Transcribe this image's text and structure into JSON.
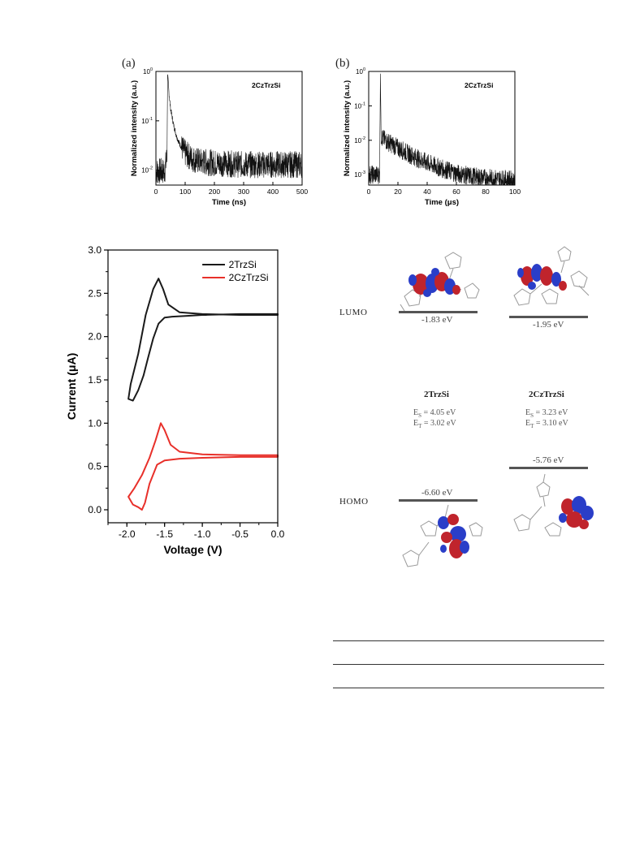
{
  "panel_a": {
    "label": "(a)",
    "chart_data": {
      "type": "line",
      "title": "2CzTrzSi",
      "xlabel": "Time (ns)",
      "ylabel": "Normalized intensity (a.u.)",
      "xlim": [
        0,
        500
      ],
      "ylim_log": [
        0.005,
        1
      ],
      "x_ticks": [
        "0",
        "100",
        "200",
        "300",
        "400",
        "500"
      ],
      "y_ticks": [
        {
          "v": 1,
          "base": "10",
          "exp": "0"
        },
        {
          "v": 0.1,
          "base": "10",
          "exp": "-1"
        },
        {
          "v": 0.01,
          "base": "10",
          "exp": "-2"
        }
      ],
      "series": [
        {
          "x": [
            0,
            30,
            38,
            40,
            42,
            45,
            50,
            60,
            70,
            80,
            100,
            125,
            150,
            200,
            300,
            400,
            500
          ],
          "y": [
            0.0095,
            0.0095,
            0.02,
            0.9,
            0.6,
            0.35,
            0.18,
            0.085,
            0.05,
            0.035,
            0.022,
            0.017,
            0.015,
            0.014,
            0.013,
            0.013,
            0.013
          ]
        }
      ]
    }
  },
  "panel_b": {
    "label": "(b)",
    "chart_data": {
      "type": "line",
      "title": "2CzTrzSi",
      "xlabel": "Time (μs)",
      "ylabel": "Normalized intensity (a.u.)",
      "xlim": [
        0,
        100
      ],
      "ylim_log": [
        0.0005,
        1
      ],
      "x_ticks": [
        "0",
        "20",
        "40",
        "60",
        "80",
        "100"
      ],
      "y_ticks": [
        {
          "v": 1,
          "base": "10",
          "exp": "0"
        },
        {
          "v": 0.1,
          "base": "10",
          "exp": "-1"
        },
        {
          "v": 0.01,
          "base": "10",
          "exp": "-2"
        },
        {
          "v": 0.001,
          "base": "10",
          "exp": "-3"
        }
      ],
      "series": [
        {
          "x": [
            0,
            7.5,
            8,
            8.5,
            10,
            15,
            20,
            30,
            40,
            50,
            60,
            70,
            80,
            90,
            100
          ],
          "y": [
            0.001,
            0.001,
            0.9,
            0.013,
            0.011,
            0.008,
            0.006,
            0.0035,
            0.0022,
            0.0015,
            0.0011,
            0.0009,
            0.0008,
            0.00075,
            0.0007
          ]
        }
      ]
    }
  },
  "cv_chart": {
    "chart_data": {
      "type": "line",
      "xlabel": "Voltage (V)",
      "ylabel": "Current (μA)",
      "xlim": [
        -2.25,
        0.0
      ],
      "ylim": [
        -0.15,
        3.0
      ],
      "x_ticks": [
        "-2.0",
        "-1.5",
        "-1.0",
        "-0.5",
        "0.0"
      ],
      "y_ticks": [
        "0.0",
        "0.5",
        "1.0",
        "1.5",
        "2.0",
        "2.5",
        "3.0"
      ],
      "legend_position": "top-right",
      "series": [
        {
          "name": "2TrzSi",
          "color": "#1a1a1a",
          "x": [
            0.0,
            -0.5,
            -1.0,
            -1.3,
            -1.45,
            -1.52,
            -1.58,
            -1.65,
            -1.75,
            -1.85,
            -1.95,
            -1.98,
            -1.92,
            -1.85,
            -1.78,
            -1.72,
            -1.65,
            -1.58,
            -1.5,
            -1.4,
            -1.2,
            -1.0,
            -0.5,
            0.0
          ],
          "y": [
            2.25,
            2.25,
            2.26,
            2.28,
            2.37,
            2.55,
            2.67,
            2.55,
            2.25,
            1.8,
            1.45,
            1.28,
            1.26,
            1.38,
            1.55,
            1.75,
            1.98,
            2.15,
            2.22,
            2.23,
            2.24,
            2.25,
            2.26,
            2.26
          ],
          "closed": true
        },
        {
          "name": "2CzTrzSi",
          "color": "#e8302a",
          "x": [
            0.0,
            -0.5,
            -1.0,
            -1.3,
            -1.42,
            -1.5,
            -1.55,
            -1.62,
            -1.7,
            -1.8,
            -1.9,
            -1.98,
            -1.92,
            -1.85,
            -1.8,
            -1.76,
            -1.7,
            -1.6,
            -1.5,
            -1.3,
            -1.0,
            -0.5,
            0.0
          ],
          "y": [
            0.63,
            0.63,
            0.64,
            0.67,
            0.75,
            0.92,
            1.0,
            0.8,
            0.6,
            0.4,
            0.25,
            0.15,
            0.06,
            0.03,
            0.0,
            0.08,
            0.3,
            0.52,
            0.57,
            0.59,
            0.6,
            0.61,
            0.61
          ],
          "closed": true
        }
      ]
    }
  },
  "energy_diagram": {
    "lumo_label": "LUMO",
    "homo_label": "HOMO",
    "molecules": [
      {
        "name": "2TrzSi",
        "lumo": "-1.83 eV",
        "homo": "-6.60 eV",
        "es": "E",
        "es_sub": "S",
        "es_val": " = 4.05 eV",
        "et": "E",
        "et_sub": "T",
        "et_val": " = 3.02 eV"
      },
      {
        "name": "2CzTrzSi",
        "lumo": "-1.95 eV",
        "homo": "-5.76 eV",
        "es": "E",
        "es_sub": "S",
        "es_val": " = 3.23 eV",
        "et": "E",
        "et_sub": "T",
        "et_val": " = 3.10 eV"
      }
    ]
  }
}
